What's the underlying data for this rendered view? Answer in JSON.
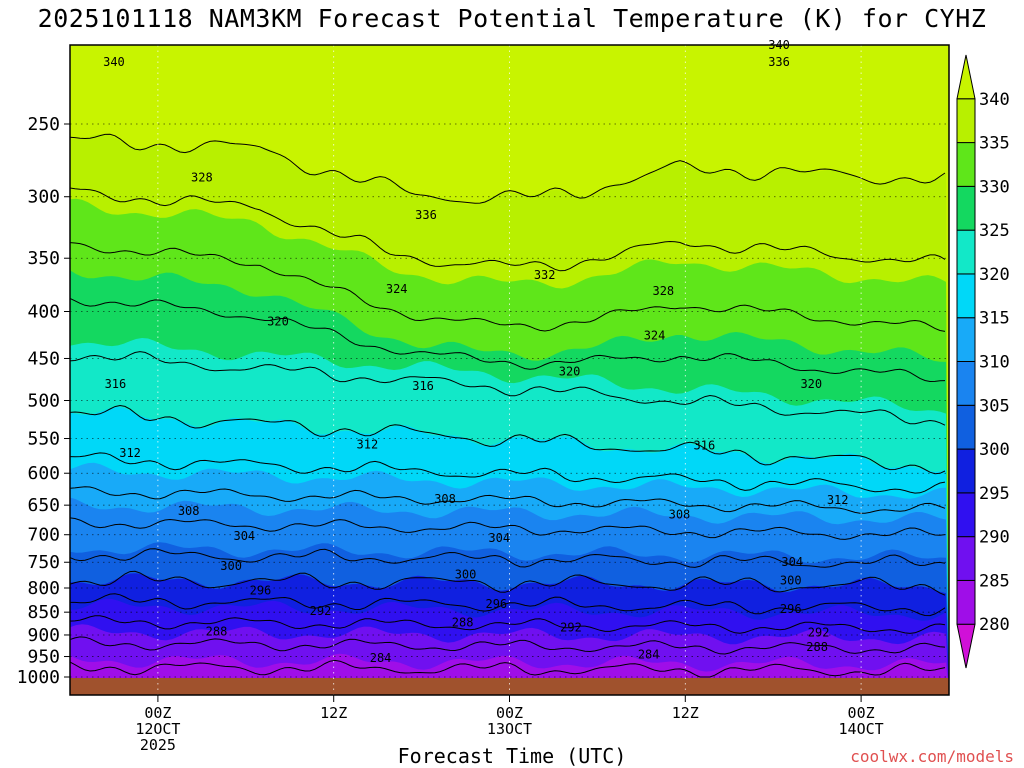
{
  "title": "2025101118 NAM3KM Forecast Potential Temperature (K) for CYHZ",
  "xlabel": "Forecast Time (UTC)",
  "credit": "coolwx.com/models",
  "chart_data": {
    "type": "contour",
    "title": "2025101118 NAM3KM Forecast Potential Temperature (K) for CYHZ",
    "xlabel": "Forecast Time (UTC)",
    "ylabel": "",
    "x_ticks": [
      {
        "hours": 6,
        "label": [
          "00Z",
          "12OCT",
          "2025"
        ]
      },
      {
        "hours": 18,
        "label": [
          "12Z"
        ]
      },
      {
        "hours": 30,
        "label": [
          "00Z",
          "13OCT"
        ]
      },
      {
        "hours": 42,
        "label": [
          "12Z"
        ]
      },
      {
        "hours": 54,
        "label": [
          "00Z",
          "14OCT"
        ]
      }
    ],
    "xlim_hours": [
      0,
      60
    ],
    "y_scale": "log",
    "y_reversed": true,
    "ylim": [
      1000,
      200
    ],
    "y_ticks": [
      1000,
      950,
      900,
      850,
      800,
      750,
      700,
      650,
      600,
      550,
      500,
      450,
      400,
      350,
      300,
      250
    ],
    "grid": true,
    "colorbar": {
      "levels": [
        280,
        285,
        290,
        295,
        300,
        305,
        310,
        315,
        320,
        325,
        330,
        335,
        340
      ],
      "colors": [
        "#d010d8",
        "#9f0ee8",
        "#7010f0",
        "#3010f0",
        "#1020e0",
        "#1060e0",
        "#1a84f0",
        "#18aaf8",
        "#00d8f8",
        "#12e8c8",
        "#14d860",
        "#5fe61a",
        "#b8f000",
        "#c8f400"
      ]
    },
    "contour_labels": [
      {
        "value": "340",
        "x_hours": 3,
        "p": 214
      },
      {
        "value": "340",
        "x_hours": 48.4,
        "p": 205
      },
      {
        "value": "336",
        "x_hours": 48.4,
        "p": 214
      },
      {
        "value": "336",
        "x_hours": 24.3,
        "p": 314
      },
      {
        "value": "332",
        "x_hours": 32.4,
        "p": 365
      },
      {
        "value": "328",
        "x_hours": 9,
        "p": 286
      },
      {
        "value": "328",
        "x_hours": 40.5,
        "p": 380
      },
      {
        "value": "324",
        "x_hours": 22.3,
        "p": 378
      },
      {
        "value": "324",
        "x_hours": 39.9,
        "p": 425
      },
      {
        "value": "320",
        "x_hours": 14.2,
        "p": 410
      },
      {
        "value": "320",
        "x_hours": 34.1,
        "p": 465
      },
      {
        "value": "320",
        "x_hours": 50.6,
        "p": 480
      },
      {
        "value": "316",
        "x_hours": 3.1,
        "p": 480
      },
      {
        "value": "316",
        "x_hours": 24.1,
        "p": 482
      },
      {
        "value": "316",
        "x_hours": 43.3,
        "p": 560
      },
      {
        "value": "312",
        "x_hours": 4.1,
        "p": 570
      },
      {
        "value": "312",
        "x_hours": 20.3,
        "p": 558
      },
      {
        "value": "312",
        "x_hours": 52.4,
        "p": 642
      },
      {
        "value": "308",
        "x_hours": 8.1,
        "p": 660
      },
      {
        "value": "308",
        "x_hours": 25.6,
        "p": 640
      },
      {
        "value": "308",
        "x_hours": 41.6,
        "p": 665
      },
      {
        "value": "304",
        "x_hours": 11.9,
        "p": 702
      },
      {
        "value": "304",
        "x_hours": 29.3,
        "p": 706
      },
      {
        "value": "304",
        "x_hours": 49.3,
        "p": 750
      },
      {
        "value": "300",
        "x_hours": 11,
        "p": 757
      },
      {
        "value": "300",
        "x_hours": 27,
        "p": 773
      },
      {
        "value": "300",
        "x_hours": 49.2,
        "p": 785
      },
      {
        "value": "296",
        "x_hours": 13,
        "p": 805
      },
      {
        "value": "296",
        "x_hours": 29.1,
        "p": 833
      },
      {
        "value": "296",
        "x_hours": 49.2,
        "p": 843
      },
      {
        "value": "292",
        "x_hours": 17.1,
        "p": 847
      },
      {
        "value": "292",
        "x_hours": 34.2,
        "p": 883
      },
      {
        "value": "292",
        "x_hours": 51.1,
        "p": 895
      },
      {
        "value": "288",
        "x_hours": 10,
        "p": 892
      },
      {
        "value": "288",
        "x_hours": 26.8,
        "p": 872
      },
      {
        "value": "288",
        "x_hours": 51,
        "p": 927
      },
      {
        "value": "284",
        "x_hours": 21.2,
        "p": 953
      },
      {
        "value": "284",
        "x_hours": 39.5,
        "p": 945
      }
    ]
  }
}
